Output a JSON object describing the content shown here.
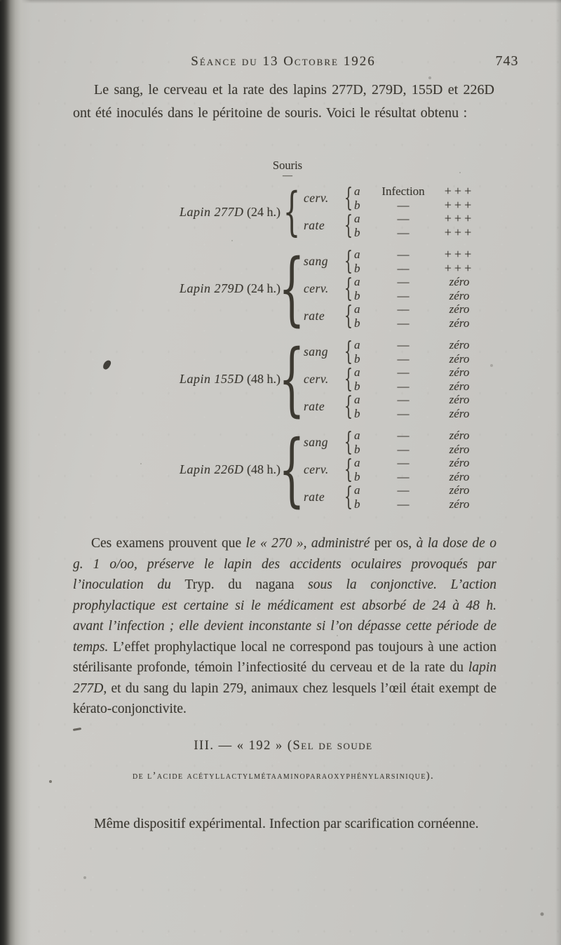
{
  "colors": {
    "paper": "#cbcac6",
    "ink": "#39362f",
    "edge_dark": "#21211f"
  },
  "header": {
    "title": "Séance du 13 Octobre 1926",
    "page_number": "743"
  },
  "intro": "Le sang, le cerveau et la rate des lapins 277D, 279D, 155D et 226D ont été inoculés dans le péritoine de souris. Voici le résultat obtenu :",
  "table": {
    "column_header": "Souris",
    "column_header_dash": "—",
    "brace": "{",
    "groups": [
      {
        "label_italic": "Lapin 277D",
        "label_roman": "(24 h.)",
        "organs": [
          {
            "name": "cerv.",
            "rows": [
              [
                "a",
                "Infection",
                "+++"
              ],
              [
                "b",
                "—",
                "+++"
              ]
            ]
          },
          {
            "name": "rate",
            "rows": [
              [
                "a",
                "—",
                "+++"
              ],
              [
                "b",
                "—",
                "+++"
              ]
            ]
          }
        ]
      },
      {
        "label_italic": "Lapin 279D",
        "label_roman": "(24 h.)",
        "organs": [
          {
            "name": "sang",
            "rows": [
              [
                "a",
                "—",
                "+++"
              ],
              [
                "b",
                "—",
                "+++"
              ]
            ]
          },
          {
            "name": "cerv.",
            "rows": [
              [
                "a",
                "—",
                "zéro"
              ],
              [
                "b",
                "—",
                "zéro"
              ]
            ]
          },
          {
            "name": "rate",
            "rows": [
              [
                "a",
                "—",
                "zéro"
              ],
              [
                "b",
                "—",
                "zéro"
              ]
            ]
          }
        ]
      },
      {
        "label_italic": "Lapin 155D",
        "label_roman": "(48 h.)",
        "organs": [
          {
            "name": "sang",
            "rows": [
              [
                "a",
                "—",
                "zéro"
              ],
              [
                "b",
                "—",
                "zéro"
              ]
            ]
          },
          {
            "name": "cerv.",
            "rows": [
              [
                "a",
                "—",
                "zéro"
              ],
              [
                "b",
                "—",
                "zéro"
              ]
            ]
          },
          {
            "name": "rate",
            "rows": [
              [
                "a",
                "—",
                "zéro"
              ],
              [
                "b",
                "—",
                "zéro"
              ]
            ]
          }
        ]
      },
      {
        "label_italic": "Lapin 226D",
        "label_roman": "(48 h.)",
        "organs": [
          {
            "name": "sang",
            "rows": [
              [
                "a",
                "—",
                "zéro"
              ],
              [
                "b",
                "—",
                "zéro"
              ]
            ]
          },
          {
            "name": "cerv.",
            "rows": [
              [
                "a",
                "—",
                "zéro"
              ],
              [
                "b",
                "—",
                "zéro"
              ]
            ]
          },
          {
            "name": "rate",
            "rows": [
              [
                "a",
                "—",
                "zéro"
              ],
              [
                "b",
                "—",
                "zéro"
              ]
            ]
          }
        ]
      }
    ]
  },
  "conclusion": {
    "segments": [
      {
        "text": "Ces examens prouvent que ",
        "italic": false
      },
      {
        "text": "le « 270 », administré ",
        "italic": true
      },
      {
        "text": "per os, ",
        "italic": false
      },
      {
        "text": "à la dose de o g. 1 o/oo, préserve le lapin des accidents oculaires provoqués par l’inoculation du ",
        "italic": true
      },
      {
        "text": "Tryp. du nagana ",
        "italic": false
      },
      {
        "text": "sous la conjonctive. L’action prophylactique est certaine si le médicament est absorbé de 24 à 48 h. avant l’infection ; elle devient inconstante si l’on dépasse cette période de temps. ",
        "italic": true
      },
      {
        "text": "L’effet prophylactique local ne correspond pas toujours à une action stérilisante profonde, témoin l’infectiosité du cerveau et de la rate du ",
        "italic": false
      },
      {
        "text": "lapin 277D",
        "italic": true
      },
      {
        "text": ", et du sang du lapin 279, animaux chez lesquels l’œil était exempt de kérato-conjonctivite.",
        "italic": false
      }
    ]
  },
  "section": {
    "line1": "III. — « 192 » (Sel de soude",
    "line2": "de l’acide acétyllactylmétaaminoparaoxyphénylarsinique)."
  },
  "closing": "Même dispositif expérimental. Infection par scarification cornéenne."
}
